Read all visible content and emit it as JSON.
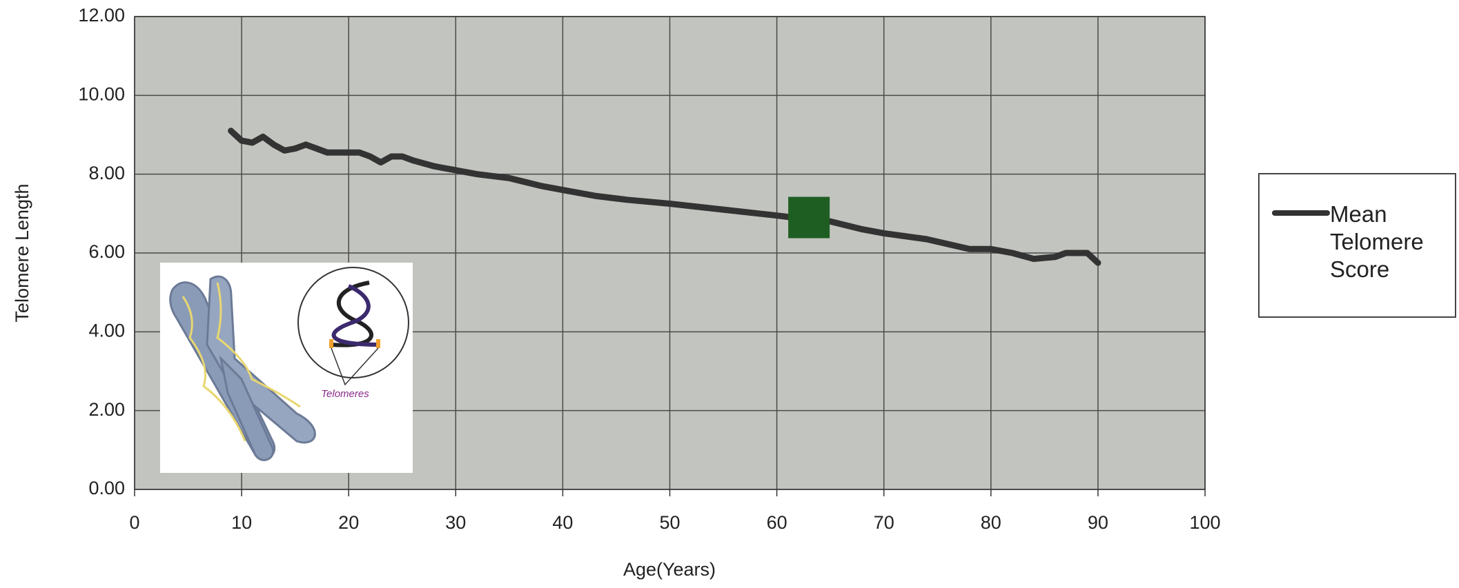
{
  "chart_data": {
    "type": "line",
    "xlabel": "Age(Years)",
    "ylabel": "Telomere Length",
    "x": [
      9,
      10,
      11,
      12,
      13,
      14,
      15,
      16,
      17,
      18,
      19,
      20,
      21,
      22,
      23,
      24,
      25,
      26,
      28,
      30,
      32,
      35,
      38,
      40,
      43,
      46,
      50,
      55,
      60,
      63,
      65,
      68,
      70,
      74,
      78,
      80,
      82,
      84,
      86,
      87,
      89,
      90
    ],
    "series": [
      {
        "name": "Mean Telomere Score",
        "color": "#333333",
        "values": [
          9.1,
          8.85,
          8.8,
          8.95,
          8.75,
          8.6,
          8.65,
          8.75,
          8.65,
          8.55,
          8.55,
          8.55,
          8.55,
          8.45,
          8.3,
          8.45,
          8.45,
          8.35,
          8.2,
          8.1,
          8.0,
          7.9,
          7.7,
          7.6,
          7.45,
          7.35,
          7.25,
          7.1,
          6.95,
          6.85,
          6.8,
          6.6,
          6.5,
          6.35,
          6.1,
          6.1,
          6.0,
          5.85,
          5.9,
          6.0,
          6.0,
          5.75
        ]
      }
    ],
    "highlight": {
      "x": 63,
      "y": 6.9,
      "color": "#1e5e22"
    },
    "xlim": [
      0,
      100
    ],
    "xticks": [
      0,
      10,
      20,
      30,
      40,
      50,
      60,
      70,
      80,
      90,
      100
    ],
    "ylim": [
      0,
      12
    ],
    "yticks": [
      {
        "value": 0,
        "label": "0.00"
      },
      {
        "value": 2,
        "label": "2.00"
      },
      {
        "value": 4,
        "label": "4.00"
      },
      {
        "value": 6,
        "label": "6.00"
      },
      {
        "value": 8,
        "label": "8.00"
      },
      {
        "value": 10,
        "label": "10.00"
      },
      {
        "value": 12,
        "label": "12.00"
      }
    ],
    "grid": true,
    "inset_label": "Telomeres"
  }
}
